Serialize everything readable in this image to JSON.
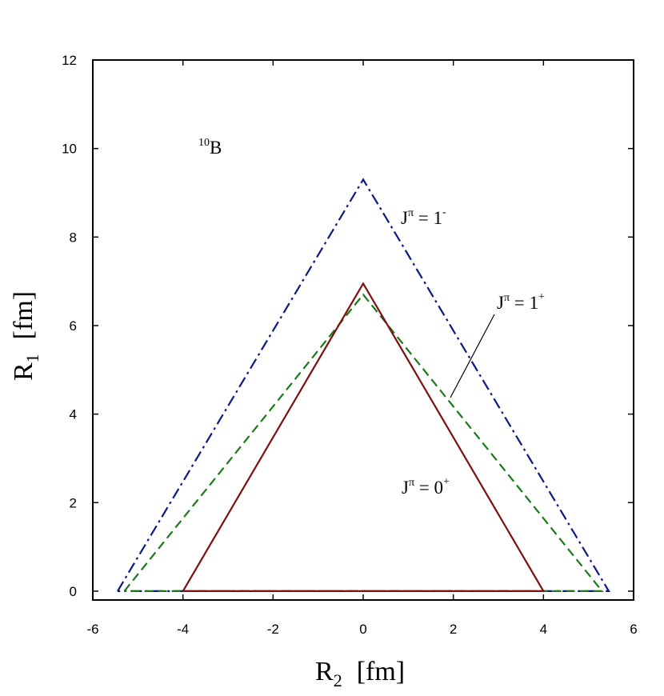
{
  "chart_data": {
    "type": "line",
    "title": "",
    "xlabel": {
      "base": "R",
      "sub": "2",
      "unit": "[fm]"
    },
    "ylabel": {
      "base": "R",
      "sub": "1",
      "unit": "[fm]"
    },
    "xlim": [
      -6,
      6
    ],
    "ylim": [
      -0.2,
      12
    ],
    "xticks": [
      -6,
      -4,
      -2,
      0,
      2,
      4,
      6
    ],
    "xtick_labels": [
      "-6",
      "-4",
      "-2",
      "0",
      "2",
      "4",
      "6"
    ],
    "yticks": [
      0,
      2,
      4,
      6,
      8,
      10,
      12
    ],
    "ytick_labels": [
      "0",
      "2",
      "4",
      "6",
      "8",
      "10",
      "12"
    ],
    "grid": false,
    "series": [
      {
        "label_base": "J",
        "label_sup": "π",
        "label_eq": " = 1",
        "label_parity": "-",
        "color": "#0b1a80",
        "dash": "dash-dot",
        "x": [
          -5.45,
          0.0,
          5.45,
          -5.45
        ],
        "y": [
          0.0,
          9.3,
          0.0,
          0.0
        ]
      },
      {
        "label_base": "J",
        "label_sup": "π",
        "label_eq": " = 1",
        "label_parity": "+",
        "color": "#1a7a1a",
        "dash": "dashed",
        "x": [
          -5.3,
          0.0,
          5.3,
          -5.3
        ],
        "y": [
          0.0,
          6.7,
          0.0,
          0.0
        ]
      },
      {
        "label_base": "J",
        "label_sup": "π",
        "label_eq": " = 0",
        "label_parity": "+",
        "color": "#7f0f0f",
        "dash": "solid",
        "x": [
          -4.0,
          0.0,
          4.0,
          -4.0
        ],
        "y": [
          0.0,
          6.95,
          0.0,
          0.0
        ]
      }
    ],
    "annotations": [
      {
        "text_sup": "10",
        "text": "B"
      }
    ]
  }
}
